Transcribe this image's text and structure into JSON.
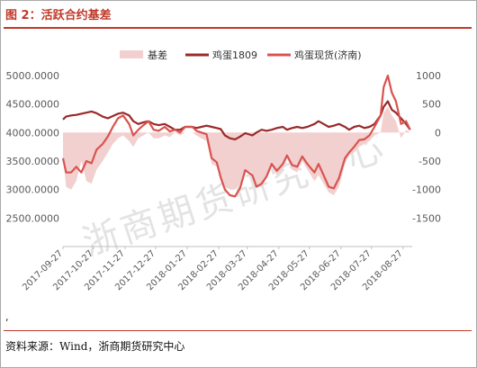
{
  "figure": {
    "title": "图 2：活跃合约基差",
    "stray_mark": ",",
    "source": "资料来源：Wind，浙商期货研究中心",
    "watermark": "浙商期货研究中心"
  },
  "colors": {
    "title": "#c0392b",
    "basis_fill": "#f2d0d0",
    "futures_line": "#9a2a2a",
    "spot_line": "#d9534f",
    "axis_text": "#595959",
    "watermark": "#c8c8c8"
  },
  "chart_data": {
    "type": "line",
    "legend_position": "top",
    "grid": false,
    "title": "",
    "xlabel": "",
    "ylabel": "",
    "y_left": {
      "range": [
        2000,
        5000
      ],
      "ticks": [
        "5000.0000",
        "4500.0000",
        "4000.0000",
        "3500.0000",
        "3000.0000",
        "2500.0000"
      ],
      "tick_values": [
        5000,
        4500,
        4000,
        3500,
        3000,
        2500
      ]
    },
    "y_right": {
      "range": [
        -2000,
        1000
      ],
      "ticks": [
        "1000",
        "500",
        "0",
        "-500",
        "-1000",
        "-1500"
      ],
      "tick_values": [
        1000,
        500,
        0,
        -500,
        -1000,
        -1500
      ]
    },
    "x_range": [
      "2017-09-27",
      "2018-09-05"
    ],
    "x_tick_labels": [
      "2017-09-27",
      "2017-10-27",
      "2017-11-27",
      "2017-12-27",
      "2018-01-27",
      "2018-02-27",
      "2018-03-27",
      "2018-04-27",
      "2018-05-27",
      "2018-06-27",
      "2018-07-27",
      "2018-08-27"
    ],
    "series": [
      {
        "name": "基差",
        "kind": "area",
        "axis": "right",
        "points": [
          [
            "2017-09-27",
            -400
          ],
          [
            "2017-09-30",
            -950
          ],
          [
            "2017-10-05",
            -1000
          ],
          [
            "2017-10-10",
            -850
          ],
          [
            "2017-10-15",
            -500
          ],
          [
            "2017-10-20",
            -850
          ],
          [
            "2017-10-25",
            -900
          ],
          [
            "2017-10-30",
            -650
          ],
          [
            "2017-11-05",
            -500
          ],
          [
            "2017-11-10",
            -350
          ],
          [
            "2017-11-15",
            -200
          ],
          [
            "2017-11-20",
            -100
          ],
          [
            "2017-11-25",
            -50
          ],
          [
            "2017-12-01",
            -150
          ],
          [
            "2017-12-05",
            -250
          ],
          [
            "2017-12-10",
            -100
          ],
          [
            "2017-12-15",
            -50
          ],
          [
            "2017-12-20",
            0
          ],
          [
            "2017-12-25",
            -100
          ],
          [
            "2017-12-30",
            -100
          ],
          [
            "2018-01-05",
            -50
          ],
          [
            "2018-01-10",
            -80
          ],
          [
            "2018-01-15",
            0
          ],
          [
            "2018-01-20",
            -50
          ],
          [
            "2018-01-25",
            0
          ],
          [
            "2018-02-01",
            0
          ],
          [
            "2018-02-05",
            -50
          ],
          [
            "2018-02-10",
            -100
          ],
          [
            "2018-02-15",
            -150
          ],
          [
            "2018-02-20",
            -550
          ],
          [
            "2018-02-25",
            -600
          ],
          [
            "2018-03-01",
            -850
          ],
          [
            "2018-03-05",
            -950
          ],
          [
            "2018-03-10",
            -1000
          ],
          [
            "2018-03-15",
            -1000
          ],
          [
            "2018-03-20",
            -900
          ],
          [
            "2018-03-25",
            -650
          ],
          [
            "2018-04-01",
            -700
          ],
          [
            "2018-04-05",
            -950
          ],
          [
            "2018-04-10",
            -950
          ],
          [
            "2018-04-15",
            -800
          ],
          [
            "2018-04-20",
            -600
          ],
          [
            "2018-04-25",
            -750
          ],
          [
            "2018-05-01",
            -650
          ],
          [
            "2018-05-05",
            -450
          ],
          [
            "2018-05-10",
            -650
          ],
          [
            "2018-05-15",
            -700
          ],
          [
            "2018-05-20",
            -500
          ],
          [
            "2018-05-25",
            -650
          ],
          [
            "2018-06-01",
            -850
          ],
          [
            "2018-06-05",
            -750
          ],
          [
            "2018-06-10",
            -900
          ],
          [
            "2018-06-15",
            -1050
          ],
          [
            "2018-06-20",
            -1100
          ],
          [
            "2018-06-25",
            -950
          ],
          [
            "2018-07-01",
            -550
          ],
          [
            "2018-07-05",
            -400
          ],
          [
            "2018-07-10",
            -350
          ],
          [
            "2018-07-15",
            -250
          ],
          [
            "2018-07-20",
            -200
          ],
          [
            "2018-07-25",
            -150
          ],
          [
            "2018-07-30",
            -50
          ],
          [
            "2018-08-05",
            0
          ],
          [
            "2018-08-08",
            350
          ],
          [
            "2018-08-12",
            450
          ],
          [
            "2018-08-16",
            300
          ],
          [
            "2018-08-20",
            200
          ],
          [
            "2018-08-25",
            -100
          ],
          [
            "2018-08-30",
            50
          ],
          [
            "2018-09-03",
            0
          ]
        ]
      },
      {
        "name": "鸡蛋1809",
        "kind": "line",
        "axis": "left",
        "points": [
          [
            "2017-09-27",
            4230
          ],
          [
            "2017-09-30",
            4280
          ],
          [
            "2017-10-05",
            4300
          ],
          [
            "2017-10-10",
            4310
          ],
          [
            "2017-10-15",
            4330
          ],
          [
            "2017-10-20",
            4350
          ],
          [
            "2017-10-25",
            4370
          ],
          [
            "2017-10-30",
            4340
          ],
          [
            "2017-11-05",
            4280
          ],
          [
            "2017-11-10",
            4250
          ],
          [
            "2017-11-15",
            4290
          ],
          [
            "2017-11-20",
            4330
          ],
          [
            "2017-11-25",
            4350
          ],
          [
            "2017-12-01",
            4300
          ],
          [
            "2017-12-05",
            4200
          ],
          [
            "2017-12-10",
            4150
          ],
          [
            "2017-12-15",
            4180
          ],
          [
            "2017-12-20",
            4200
          ],
          [
            "2017-12-25",
            4150
          ],
          [
            "2017-12-30",
            4130
          ],
          [
            "2018-01-05",
            4150
          ],
          [
            "2018-01-10",
            4100
          ],
          [
            "2018-01-15",
            4050
          ],
          [
            "2018-01-20",
            4050
          ],
          [
            "2018-01-25",
            4100
          ],
          [
            "2018-02-01",
            4100
          ],
          [
            "2018-02-05",
            4080
          ],
          [
            "2018-02-10",
            4100
          ],
          [
            "2018-02-15",
            4120
          ],
          [
            "2018-02-20",
            4100
          ],
          [
            "2018-02-25",
            4080
          ],
          [
            "2018-03-01",
            4060
          ],
          [
            "2018-03-05",
            3950
          ],
          [
            "2018-03-10",
            3900
          ],
          [
            "2018-03-15",
            3880
          ],
          [
            "2018-03-20",
            3930
          ],
          [
            "2018-03-25",
            3990
          ],
          [
            "2018-04-01",
            3950
          ],
          [
            "2018-04-05",
            4000
          ],
          [
            "2018-04-10",
            4050
          ],
          [
            "2018-04-15",
            4030
          ],
          [
            "2018-04-20",
            4050
          ],
          [
            "2018-04-25",
            4080
          ],
          [
            "2018-05-01",
            4100
          ],
          [
            "2018-05-05",
            4050
          ],
          [
            "2018-05-10",
            4080
          ],
          [
            "2018-05-15",
            4100
          ],
          [
            "2018-05-20",
            4080
          ],
          [
            "2018-05-25",
            4100
          ],
          [
            "2018-06-01",
            4150
          ],
          [
            "2018-06-05",
            4200
          ],
          [
            "2018-06-10",
            4150
          ],
          [
            "2018-06-15",
            4100
          ],
          [
            "2018-06-20",
            4120
          ],
          [
            "2018-06-25",
            4150
          ],
          [
            "2018-07-01",
            4100
          ],
          [
            "2018-07-05",
            4050
          ],
          [
            "2018-07-10",
            4100
          ],
          [
            "2018-07-15",
            4120
          ],
          [
            "2018-07-20",
            4080
          ],
          [
            "2018-07-25",
            4100
          ],
          [
            "2018-07-30",
            4150
          ],
          [
            "2018-08-05",
            4300
          ],
          [
            "2018-08-08",
            4450
          ],
          [
            "2018-08-12",
            4550
          ],
          [
            "2018-08-16",
            4400
          ],
          [
            "2018-08-20",
            4350
          ],
          [
            "2018-08-25",
            4250
          ],
          [
            "2018-08-30",
            4150
          ],
          [
            "2018-09-03",
            4050
          ]
        ]
      },
      {
        "name": "鸡蛋现货(济南)",
        "kind": "line",
        "axis": "left",
        "points": [
          [
            "2017-09-27",
            3550
          ],
          [
            "2017-09-30",
            3300
          ],
          [
            "2017-10-05",
            3300
          ],
          [
            "2017-10-10",
            3400
          ],
          [
            "2017-10-15",
            3300
          ],
          [
            "2017-10-20",
            3500
          ],
          [
            "2017-10-25",
            3460
          ],
          [
            "2017-10-30",
            3700
          ],
          [
            "2017-11-05",
            3800
          ],
          [
            "2017-11-10",
            3930
          ],
          [
            "2017-11-15",
            4100
          ],
          [
            "2017-11-20",
            4250
          ],
          [
            "2017-11-25",
            4300
          ],
          [
            "2017-12-01",
            4150
          ],
          [
            "2017-12-05",
            3950
          ],
          [
            "2017-12-10",
            4050
          ],
          [
            "2017-12-15",
            4130
          ],
          [
            "2017-12-20",
            4200
          ],
          [
            "2017-12-25",
            4050
          ],
          [
            "2017-12-30",
            4030
          ],
          [
            "2018-01-05",
            4100
          ],
          [
            "2018-01-10",
            4020
          ],
          [
            "2018-01-15",
            4050
          ],
          [
            "2018-01-20",
            4000
          ],
          [
            "2018-01-25",
            4100
          ],
          [
            "2018-02-01",
            4100
          ],
          [
            "2018-02-05",
            4030
          ],
          [
            "2018-02-10",
            4000
          ],
          [
            "2018-02-15",
            3970
          ],
          [
            "2018-02-20",
            3550
          ],
          [
            "2018-02-25",
            3480
          ],
          [
            "2018-03-01",
            3210
          ],
          [
            "2018-03-05",
            3000
          ],
          [
            "2018-03-10",
            2900
          ],
          [
            "2018-03-15",
            2880
          ],
          [
            "2018-03-20",
            3030
          ],
          [
            "2018-03-25",
            3340
          ],
          [
            "2018-04-01",
            3250
          ],
          [
            "2018-04-05",
            3050
          ],
          [
            "2018-04-10",
            3100
          ],
          [
            "2018-04-15",
            3230
          ],
          [
            "2018-04-20",
            3450
          ],
          [
            "2018-04-25",
            3330
          ],
          [
            "2018-05-01",
            3450
          ],
          [
            "2018-05-05",
            3600
          ],
          [
            "2018-05-10",
            3430
          ],
          [
            "2018-05-15",
            3400
          ],
          [
            "2018-05-20",
            3580
          ],
          [
            "2018-05-25",
            3450
          ],
          [
            "2018-06-01",
            3300
          ],
          [
            "2018-06-05",
            3450
          ],
          [
            "2018-06-10",
            3250
          ],
          [
            "2018-06-15",
            3050
          ],
          [
            "2018-06-20",
            3020
          ],
          [
            "2018-06-25",
            3200
          ],
          [
            "2018-07-01",
            3550
          ],
          [
            "2018-07-05",
            3650
          ],
          [
            "2018-07-10",
            3750
          ],
          [
            "2018-07-15",
            3870
          ],
          [
            "2018-07-20",
            3880
          ],
          [
            "2018-07-25",
            3950
          ],
          [
            "2018-07-30",
            4100
          ],
          [
            "2018-08-05",
            4300
          ],
          [
            "2018-08-08",
            4800
          ],
          [
            "2018-08-12",
            5000
          ],
          [
            "2018-08-16",
            4700
          ],
          [
            "2018-08-20",
            4550
          ],
          [
            "2018-08-25",
            4150
          ],
          [
            "2018-08-30",
            4200
          ],
          [
            "2018-09-03",
            4050
          ]
        ]
      }
    ]
  }
}
